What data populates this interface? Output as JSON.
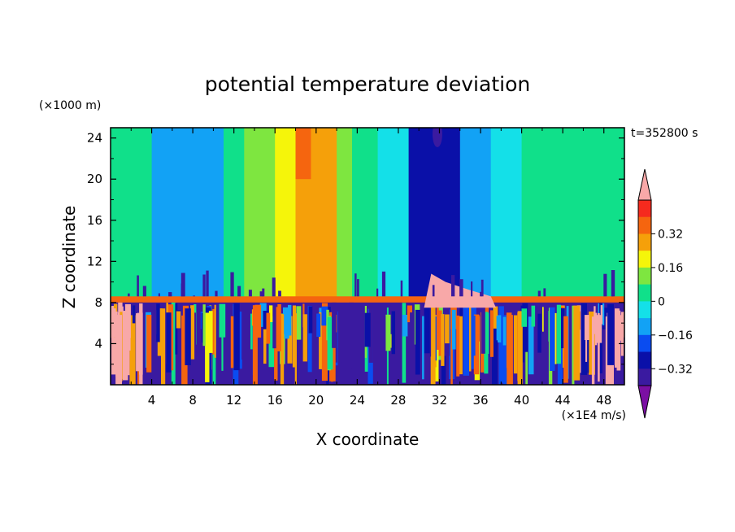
{
  "chart_data": {
    "type": "heatmap",
    "title": "potential temperature deviation",
    "xlabel": "X coordinate",
    "ylabel": "Z coordinate",
    "x_unit": "(×1E4 m/s)",
    "y_unit": "(×1000 m)",
    "time_label": "t=352800 s",
    "xlim": [
      0,
      50
    ],
    "ylim": [
      0,
      25
    ],
    "x_ticks": [
      "4",
      "8",
      "12",
      "16",
      "20",
      "24",
      "28",
      "32",
      "36",
      "40",
      "44",
      "48"
    ],
    "y_ticks": [
      "4",
      "8",
      "12",
      "16",
      "20",
      "24"
    ],
    "colorbar": {
      "labels": [
        "0.32",
        "0.16",
        "0",
        "−0.16",
        "−0.32"
      ],
      "levels": [
        -0.4,
        -0.32,
        -0.24,
        -0.16,
        -0.08,
        0,
        0.08,
        0.16,
        0.24,
        0.32,
        0.4
      ],
      "colors": [
        "#7b0fa3",
        "#3a1aa0",
        "#0a10a8",
        "#0a4cf0",
        "#12a2f5",
        "#14e0e8",
        "#10e08a",
        "#7ee640",
        "#f5f50a",
        "#f5a00a",
        "#f5650f",
        "#f52a1e",
        "#f8a8a8"
      ]
    },
    "upper_layer_columns": [
      {
        "x": [
          0,
          2
        ],
        "value": 0.05
      },
      {
        "x": [
          2,
          4
        ],
        "value": 0.0
      },
      {
        "x": [
          4,
          11
        ],
        "value": -0.12
      },
      {
        "x": [
          11,
          13
        ],
        "value": 0.0
      },
      {
        "x": [
          13,
          16
        ],
        "value": 0.15
      },
      {
        "x": [
          16,
          18
        ],
        "value": 0.22
      },
      {
        "x": [
          18,
          20
        ],
        "value": 0.28
      },
      {
        "x": [
          20,
          22
        ],
        "value": 0.25
      },
      {
        "x": [
          22,
          23.5
        ],
        "value": 0.15
      },
      {
        "x": [
          23.5,
          26
        ],
        "value": 0.05
      },
      {
        "x": [
          26,
          29
        ],
        "value": -0.05
      },
      {
        "x": [
          29,
          34
        ],
        "value": -0.3
      },
      {
        "x": [
          34,
          37
        ],
        "value": -0.12
      },
      {
        "x": [
          37,
          40
        ],
        "value": -0.05
      },
      {
        "x": [
          40,
          50
        ],
        "value": 0.05
      }
    ]
  }
}
